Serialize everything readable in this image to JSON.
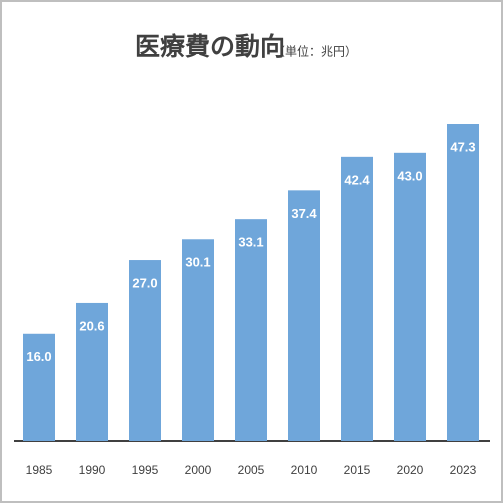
{
  "chart_data": {
    "type": "bar",
    "title": "医療費の動向",
    "subtitle": "（単位：兆円）",
    "categories": [
      "1985",
      "1990",
      "1995",
      "2000",
      "2005",
      "2010",
      "2015",
      "2020",
      "2023"
    ],
    "values": [
      16,
      20.6,
      27,
      30.1,
      33.1,
      37.4,
      42.4,
      43,
      47.3
    ],
    "value_labels": [
      "16.0",
      "20.6",
      "27.0",
      "30.1",
      "33.1",
      "37.4",
      "42.4",
      "43.0",
      "47.3"
    ],
    "color": "#6fa6da"
  }
}
